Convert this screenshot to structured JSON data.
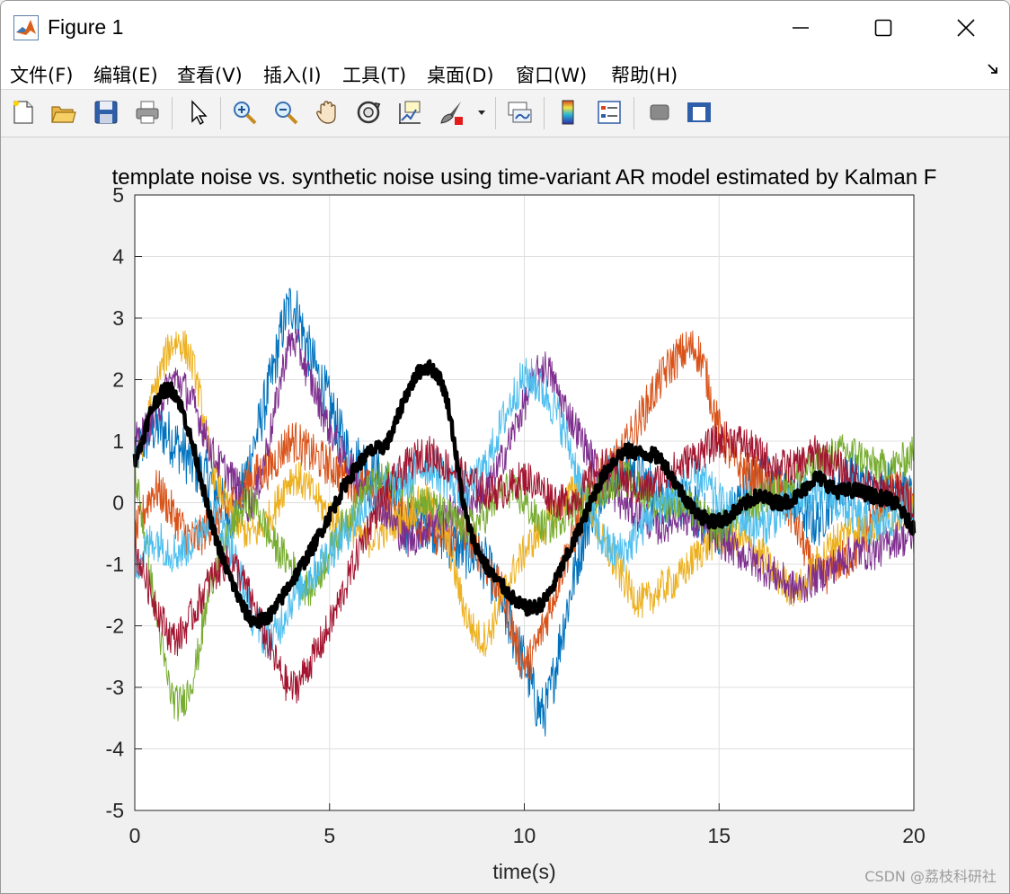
{
  "window": {
    "title": "Figure 1",
    "controls": {
      "minimize": "minimize",
      "maximize": "maximize",
      "close": "close"
    }
  },
  "menubar": {
    "items": [
      {
        "label": "文件(F)"
      },
      {
        "label": "编辑(E)"
      },
      {
        "label": "查看(V)"
      },
      {
        "label": "插入(I)"
      },
      {
        "label": "工具(T)"
      },
      {
        "label": "桌面(D)"
      },
      {
        "label": "窗口(W)"
      },
      {
        "label": "帮助(H)"
      }
    ]
  },
  "toolbar": {
    "buttons": [
      {
        "icon": "new-figure-icon"
      },
      {
        "icon": "open-file-icon"
      },
      {
        "icon": "save-icon"
      },
      {
        "icon": "print-icon"
      },
      {
        "icon": "pointer-icon"
      },
      {
        "icon": "zoom-in-icon"
      },
      {
        "icon": "zoom-out-icon"
      },
      {
        "icon": "pan-hand-icon"
      },
      {
        "icon": "rotate-3d-icon"
      },
      {
        "icon": "data-cursor-icon"
      },
      {
        "icon": "brush-icon"
      },
      {
        "icon": "link-plot-icon"
      },
      {
        "icon": "colorbar-icon"
      },
      {
        "icon": "legend-icon"
      },
      {
        "icon": "hide-plot-tools-icon"
      },
      {
        "icon": "show-plot-tools-icon"
      }
    ]
  },
  "chart_data": {
    "type": "line",
    "title": "template noise vs. synthetic noise using time-variant AR model estimated by Kalman F",
    "xlabel": "time(s)",
    "ylabel": "",
    "xlim": [
      0,
      20
    ],
    "ylim": [
      -5,
      5
    ],
    "xticks": [
      0,
      5,
      10,
      15,
      20
    ],
    "yticks": [
      -5,
      -4,
      -3,
      -2,
      -1,
      0,
      1,
      2,
      3,
      4,
      5
    ],
    "grid": true,
    "legend": "none",
    "x": [
      0,
      0.5,
      1,
      1.5,
      2,
      2.5,
      3,
      3.5,
      4,
      4.5,
      5,
      5.5,
      6,
      6.5,
      7,
      7.5,
      8,
      8.5,
      9,
      9.5,
      10,
      10.5,
      11,
      11.5,
      12,
      12.5,
      13,
      13.5,
      14,
      14.5,
      15,
      15.5,
      16,
      16.5,
      17,
      17.5,
      18,
      18.5,
      19,
      19.5,
      20
    ],
    "series": [
      {
        "color": "#0072BD",
        "noise": 0.45,
        "values": [
          0.8,
          1.2,
          1.0,
          0.6,
          0.3,
          -0.2,
          0.8,
          2.0,
          3.2,
          2.4,
          1.6,
          0.8,
          0.6,
          0.2,
          -0.4,
          -0.3,
          -0.6,
          -0.8,
          -1.0,
          -1.8,
          -2.6,
          -3.4,
          -2.0,
          -0.6,
          0.3,
          0.6,
          0.4,
          0.1,
          0.0,
          -0.2,
          -0.4,
          0.0,
          0.4,
          0.2,
          0.0,
          -0.3,
          0.2,
          0.4,
          0.1,
          0.3,
          0.0
        ]
      },
      {
        "color": "#D95319",
        "noise": 0.35,
        "values": [
          -0.5,
          0.2,
          -0.2,
          -0.6,
          -0.3,
          0.0,
          0.4,
          0.6,
          1.0,
          0.8,
          0.6,
          0.4,
          0.2,
          0.0,
          -0.2,
          -0.4,
          -0.6,
          -0.5,
          -1.0,
          -1.6,
          -2.6,
          -2.0,
          -1.0,
          -0.2,
          0.4,
          0.8,
          1.4,
          2.0,
          2.4,
          2.4,
          1.2,
          0.6,
          0.4,
          0.2,
          -0.4,
          -1.2,
          -1.0,
          -0.8,
          -0.2,
          0.2,
          0.0
        ]
      },
      {
        "color": "#EDB120",
        "noise": 0.3,
        "values": [
          0.6,
          1.8,
          2.6,
          2.2,
          0.6,
          -0.2,
          -0.5,
          -0.2,
          0.4,
          0.2,
          -0.2,
          -0.4,
          -0.6,
          -0.4,
          -0.2,
          0.0,
          -0.6,
          -1.8,
          -2.2,
          -1.4,
          -0.8,
          -0.4,
          0.0,
          0.2,
          -0.6,
          -1.2,
          -1.6,
          -1.4,
          -1.2,
          -0.8,
          -0.6,
          -0.6,
          -0.8,
          -1.2,
          -1.4,
          -1.0,
          -0.6,
          -0.4,
          -0.4,
          -0.2,
          0.0
        ]
      },
      {
        "color": "#7E2F8E",
        "noise": 0.3,
        "values": [
          1.0,
          1.4,
          2.0,
          1.6,
          0.8,
          0.4,
          0.0,
          1.2,
          2.6,
          2.0,
          1.2,
          0.6,
          0.2,
          -0.2,
          -0.6,
          -0.4,
          -0.2,
          0.0,
          0.2,
          0.8,
          1.6,
          2.2,
          1.6,
          1.0,
          0.4,
          0.0,
          -0.2,
          -0.4,
          -0.2,
          -0.4,
          -0.6,
          -0.8,
          -1.0,
          -1.2,
          -1.4,
          -1.2,
          -1.0,
          -0.8,
          -0.8,
          -0.6,
          -0.6
        ]
      },
      {
        "color": "#77AC30",
        "noise": 0.3,
        "values": [
          0.4,
          -1.6,
          -3.2,
          -2.8,
          -1.2,
          -0.4,
          0.0,
          -0.6,
          -1.0,
          -1.4,
          -0.8,
          -0.2,
          0.2,
          0.4,
          0.2,
          0.0,
          -0.2,
          -0.4,
          -0.2,
          0.2,
          0.0,
          -0.4,
          -0.2,
          0.0,
          0.2,
          0.4,
          0.2,
          0.0,
          0.0,
          -0.2,
          -0.4,
          -0.2,
          0.0,
          0.2,
          0.4,
          0.6,
          0.8,
          0.8,
          0.6,
          0.6,
          0.8
        ]
      },
      {
        "color": "#4DBEEE",
        "noise": 0.35,
        "values": [
          -1.0,
          -0.6,
          -0.8,
          -0.6,
          -0.2,
          -0.8,
          -1.8,
          -2.2,
          -1.6,
          -1.2,
          -0.8,
          -0.4,
          0.0,
          0.2,
          0.4,
          0.6,
          0.4,
          0.2,
          0.6,
          1.4,
          2.0,
          1.8,
          1.2,
          0.2,
          -0.6,
          -0.8,
          -0.4,
          0.0,
          0.2,
          0.4,
          0.0,
          -0.2,
          -0.4,
          -0.2,
          0.0,
          0.2,
          0.0,
          -0.2,
          -0.4,
          -0.2,
          0.0
        ]
      },
      {
        "color": "#A2142F",
        "noise": 0.3,
        "values": [
          -0.8,
          -1.6,
          -2.2,
          -1.8,
          -1.2,
          -1.0,
          -1.6,
          -2.4,
          -3.0,
          -2.6,
          -2.0,
          -1.2,
          -0.4,
          0.2,
          0.6,
          0.8,
          0.6,
          0.4,
          0.2,
          0.2,
          0.4,
          0.2,
          0.0,
          0.2,
          0.6,
          0.4,
          0.2,
          0.4,
          0.6,
          0.8,
          1.0,
          1.0,
          0.8,
          0.6,
          0.6,
          0.8,
          0.6,
          0.4,
          0.2,
          0.2,
          0.0
        ]
      },
      {
        "color": "#000000",
        "noise": 0.12,
        "width": 4.5,
        "values": [
          0.7,
          1.6,
          1.8,
          0.9,
          -0.4,
          -1.3,
          -1.9,
          -1.8,
          -1.3,
          -0.8,
          -0.2,
          0.4,
          0.8,
          1.0,
          1.8,
          2.2,
          1.7,
          -0.2,
          -1.0,
          -1.4,
          -1.7,
          -1.6,
          -1.0,
          -0.3,
          0.4,
          0.8,
          0.8,
          0.7,
          0.2,
          -0.2,
          -0.3,
          -0.1,
          0.1,
          0.0,
          0.1,
          0.4,
          0.2,
          0.2,
          0.1,
          0.0,
          -0.4
        ]
      }
    ]
  },
  "watermark": "CSDN @荔枝科研社"
}
